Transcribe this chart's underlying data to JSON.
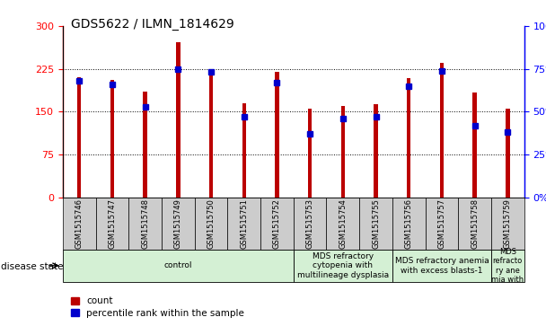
{
  "title": "GDS5622 / ILMN_1814629",
  "samples": [
    "GSM1515746",
    "GSM1515747",
    "GSM1515748",
    "GSM1515749",
    "GSM1515750",
    "GSM1515751",
    "GSM1515752",
    "GSM1515753",
    "GSM1515754",
    "GSM1515755",
    "GSM1515756",
    "GSM1515757",
    "GSM1515758",
    "GSM1515759"
  ],
  "counts": [
    210,
    205,
    185,
    272,
    218,
    165,
    220,
    155,
    160,
    163,
    208,
    235,
    183,
    155
  ],
  "percentile_ranks": [
    68,
    66,
    53,
    75,
    73,
    47,
    67,
    37,
    46,
    47,
    65,
    74,
    42,
    38
  ],
  "ylim_left": [
    0,
    300
  ],
  "ylim_right": [
    0,
    100
  ],
  "yticks_left": [
    0,
    75,
    150,
    225,
    300
  ],
  "yticks_right": [
    0,
    25,
    50,
    75,
    100
  ],
  "bar_color": "#bb0000",
  "percentile_color": "#0000cc",
  "bar_width": 0.12,
  "disease_groups": [
    {
      "label": "control",
      "start": 0,
      "end": 7,
      "color": "#d4f0d4"
    },
    {
      "label": "MDS refractory\ncytopenia with\nmultilineage dysplasia",
      "start": 7,
      "end": 10,
      "color": "#d4f0d4"
    },
    {
      "label": "MDS refractory anemia\nwith excess blasts-1",
      "start": 10,
      "end": 13,
      "color": "#d4f0d4"
    },
    {
      "label": "MDS\nrefracto\nry ane\nmia with",
      "start": 13,
      "end": 14,
      "color": "#d4f0d4"
    }
  ],
  "xlabel_disease": "disease state",
  "legend_count": "count",
  "legend_percentile": "percentile rank within the sample",
  "tick_bg_color": "#cccccc",
  "spine_color": "#000000"
}
